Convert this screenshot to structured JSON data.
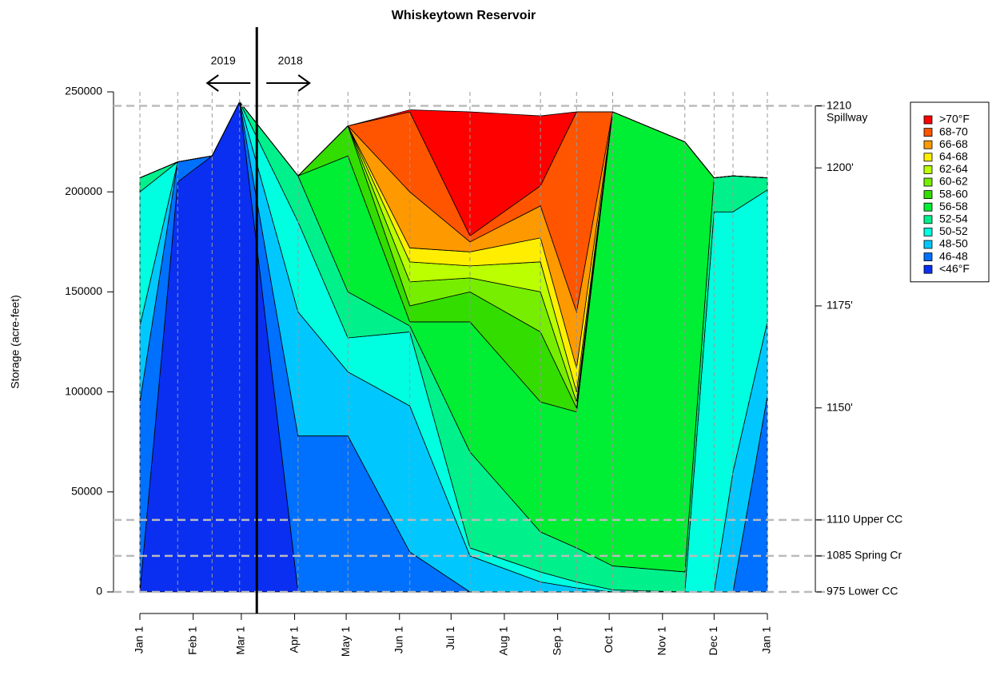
{
  "chart_data": {
    "type": "stacked_area",
    "title": "Whiskeytown Reservoir",
    "y_label": "Storage (acre-feet)",
    "x": [
      0,
      22,
      42,
      58,
      92,
      121,
      157,
      192,
      233,
      254,
      275,
      317,
      334,
      345,
      365
    ],
    "xlim": [
      0,
      365
    ],
    "xticks": [
      {
        "value": 0,
        "label": "Jan 1"
      },
      {
        "value": 31,
        "label": "Feb 1"
      },
      {
        "value": 59,
        "label": "Mar 1"
      },
      {
        "value": 90,
        "label": "Apr 1"
      },
      {
        "value": 120,
        "label": "May 1"
      },
      {
        "value": 151,
        "label": "Jun 1"
      },
      {
        "value": 181,
        "label": "Jul 1"
      },
      {
        "value": 212,
        "label": "Aug 1"
      },
      {
        "value": 243,
        "label": "Sep 1"
      },
      {
        "value": 273,
        "label": "Oct 1"
      },
      {
        "value": 304,
        "label": "Nov 1"
      },
      {
        "value": 334,
        "label": "Dec 1"
      },
      {
        "value": 365,
        "label": "Jan 1"
      }
    ],
    "ylim": [
      0,
      250000
    ],
    "yticks": [
      0,
      50000,
      100000,
      150000,
      200000,
      250000
    ],
    "elevation_ticks": [
      {
        "value": 243000,
        "label": "1210\nSpillway",
        "line": true
      },
      {
        "value": 212000,
        "label": "1200'",
        "line": false
      },
      {
        "value": 143000,
        "label": "1175'",
        "line": false
      },
      {
        "value": 92000,
        "label": "1150'",
        "line": false
      },
      {
        "value": 36000,
        "label": "1110 Upper CC",
        "line": true
      },
      {
        "value": 18000,
        "label": "1085 Spring Cr",
        "line": true
      },
      {
        "value": 0,
        "label": "975 Lower CC",
        "line": true
      }
    ],
    "divider": {
      "x": 68,
      "left_label": "2019",
      "right_label": "2018"
    },
    "series": [
      {
        "name": "<46°F",
        "color": "#0a2ff0",
        "values": [
          0,
          205000,
          218000,
          245000,
          0,
          0,
          0,
          0,
          0,
          0,
          0,
          0,
          0,
          0,
          0
        ]
      },
      {
        "name": "46-48",
        "color": "#0070ff",
        "values": [
          95000,
          10000,
          0,
          0,
          78000,
          78000,
          20000,
          0,
          0,
          0,
          0,
          0,
          0,
          0,
          98000
        ]
      },
      {
        "name": "48-50",
        "color": "#00c8ff",
        "values": [
          38000,
          0,
          0,
          0,
          62000,
          32000,
          73000,
          18000,
          5000,
          2000,
          0,
          0,
          0,
          60000,
          37000
        ]
      },
      {
        "name": "50-52",
        "color": "#00ffe0",
        "values": [
          67000,
          0,
          0,
          0,
          45000,
          17000,
          37000,
          4000,
          5000,
          3000,
          1000,
          0,
          190000,
          130000,
          66000
        ]
      },
      {
        "name": "52-54",
        "color": "#00f08c",
        "values": [
          7000,
          0,
          0,
          0,
          23000,
          23000,
          3000,
          48000,
          20000,
          17000,
          12000,
          10000,
          17000,
          18000,
          6000
        ]
      },
      {
        "name": "56-58",
        "color": "#00ee33",
        "values": [
          0,
          0,
          0,
          0,
          0,
          68000,
          2000,
          65000,
          65000,
          68000,
          227000,
          215000,
          0,
          0,
          0
        ]
      },
      {
        "name": "58-60",
        "color": "#33dd00",
        "values": [
          0,
          0,
          0,
          0,
          0,
          15000,
          8000,
          15000,
          35000,
          2000,
          0,
          0,
          0,
          0,
          0
        ]
      },
      {
        "name": "60-62",
        "color": "#77ee00",
        "values": [
          0,
          0,
          0,
          0,
          0,
          0,
          12000,
          7000,
          20000,
          3000,
          0,
          0,
          0,
          0,
          0
        ]
      },
      {
        "name": "62-64",
        "color": "#bbff00",
        "values": [
          0,
          0,
          0,
          0,
          0,
          0,
          10000,
          6000,
          15000,
          5000,
          0,
          0,
          0,
          0,
          0
        ]
      },
      {
        "name": "64-68",
        "color": "#ffee00",
        "values": [
          0,
          0,
          0,
          0,
          0,
          0,
          7000,
          7000,
          12000,
          12000,
          0,
          0,
          0,
          0,
          0
        ]
      },
      {
        "name": "66-68",
        "color": "#ff9900",
        "values": [
          0,
          0,
          0,
          0,
          0,
          0,
          28000,
          5000,
          16000,
          28000,
          0,
          0,
          0,
          0,
          0
        ]
      },
      {
        "name": "68-70",
        "color": "#ff5500",
        "values": [
          0,
          0,
          0,
          0,
          0,
          0,
          40000,
          3000,
          10000,
          100000,
          0,
          0,
          0,
          0,
          0
        ]
      },
      {
        "name": ">70°F",
        "color": "#ff0000",
        "values": [
          0,
          0,
          0,
          0,
          0,
          0,
          1000,
          62000,
          35000,
          0,
          0,
          0,
          0,
          0,
          0
        ]
      }
    ]
  }
}
